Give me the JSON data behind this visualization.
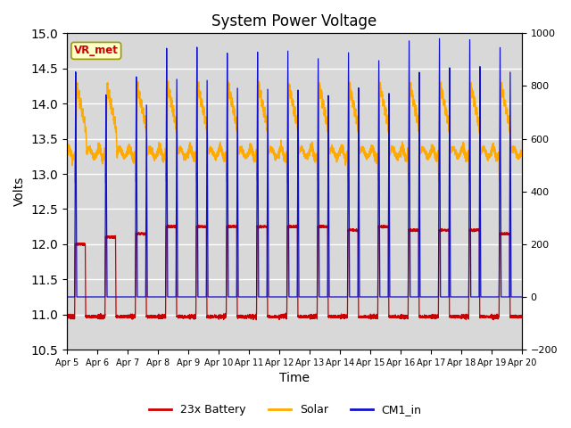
{
  "title": "System Power Voltage",
  "xlabel": "Time",
  "ylabel_left": "Volts",
  "ylim_left": [
    10.5,
    15.0
  ],
  "ylim_right": [
    -200,
    1000
  ],
  "xtick_labels": [
    "Apr 5",
    "Apr 6",
    "Apr 7",
    "Apr 8",
    "Apr 9",
    "Apr 10",
    "Apr 11",
    "Apr 12",
    "Apr 13",
    "Apr 14",
    "Apr 15",
    "Apr 16",
    "Apr 17",
    "Apr 18",
    "Apr 19",
    "Apr 20"
  ],
  "legend_entries": [
    "23x Battery",
    "Solar",
    "CM1_in"
  ],
  "legend_colors": [
    "#cc0000",
    "#ffaa00",
    "#1111cc"
  ],
  "annotation_text": "VR_met",
  "annotation_box_color": "#ffffcc",
  "annotation_border_color": "#999900",
  "annotation_text_color": "#cc0000",
  "background_color": "#d8d8d8",
  "grid_color": "#ffffff",
  "title_fontsize": 12,
  "axis_fontsize": 10
}
